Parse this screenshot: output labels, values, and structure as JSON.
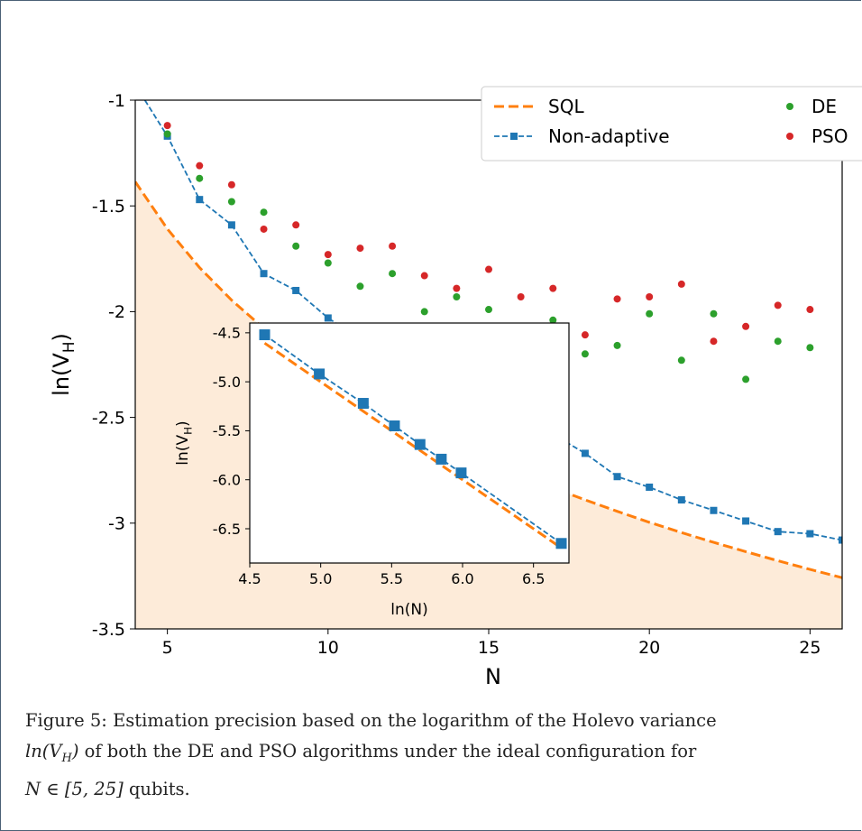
{
  "chart_data": {
    "type": "scatter",
    "xlabel": "N",
    "ylabel": "ln(V_H)",
    "xlim": [
      4,
      26
    ],
    "ylim": [
      -3.5,
      -1
    ],
    "xticks": [
      5,
      10,
      15,
      20,
      25
    ],
    "yticks": [
      -1,
      -1.5,
      -2,
      -2.5,
      -3,
      -3.5
    ],
    "xtick_labels": [
      "5",
      "10",
      "15",
      "20",
      "25"
    ],
    "ytick_labels": [
      "-1",
      "-1.5",
      "-2",
      "-2.5",
      "-3",
      "-3.5"
    ],
    "legend": {
      "placement": "top-right",
      "columns": 2
    },
    "series": [
      {
        "name": "SQL",
        "style": "dashed-line",
        "color": "#ff7f0e",
        "fill_below": "#fdebd9",
        "x": [
          4,
          5,
          6,
          7,
          8,
          9,
          10,
          11,
          12,
          13,
          14,
          15,
          16,
          17,
          18,
          19,
          20,
          21,
          22,
          23,
          24,
          25,
          26
        ],
        "y": [
          -1.386,
          -1.609,
          -1.792,
          -1.946,
          -2.079,
          -2.197,
          -2.303,
          -2.398,
          -2.485,
          -2.565,
          -2.639,
          -2.708,
          -2.773,
          -2.833,
          -2.89,
          -2.944,
          -2.996,
          -3.045,
          -3.091,
          -3.135,
          -3.178,
          -3.219,
          -3.258
        ]
      },
      {
        "name": "Non-adaptive",
        "style": "dashed-line-square",
        "color": "#1f77b4",
        "x": [
          4.3,
          5,
          6,
          7,
          8,
          9,
          10,
          11,
          12,
          13,
          14,
          15,
          16,
          17,
          18,
          19,
          20,
          21,
          22,
          23,
          24,
          25,
          26
        ],
        "y": [
          -1.0,
          -1.17,
          -1.47,
          -1.59,
          -1.82,
          -1.9,
          -2.03,
          -2.13,
          -2.2,
          -2.3,
          -2.36,
          -2.43,
          -2.5,
          -2.58,
          -2.67,
          -2.78,
          -2.83,
          -2.89,
          -2.94,
          -2.99,
          -3.04,
          -3.05,
          -3.08
        ]
      },
      {
        "name": "DE",
        "style": "points",
        "color": "#2ca02c",
        "x": [
          5,
          6,
          7,
          8,
          9,
          10,
          11,
          12,
          13,
          14,
          15,
          16,
          17,
          18,
          19,
          20,
          21,
          22,
          23,
          24,
          25
        ],
        "y": [
          -1.16,
          -1.37,
          -1.48,
          -1.53,
          -1.69,
          -1.77,
          -1.88,
          -1.82,
          -2.0,
          -1.93,
          -1.99,
          -2.08,
          -2.04,
          -2.2,
          -2.16,
          -2.01,
          -2.23,
          -2.01,
          -2.32,
          -2.14,
          -2.17
        ]
      },
      {
        "name": "PSO",
        "style": "points",
        "color": "#d62728",
        "x": [
          5,
          6,
          7,
          8,
          9,
          10,
          11,
          12,
          13,
          14,
          15,
          16,
          17,
          18,
          19,
          20,
          21,
          22,
          23,
          24,
          25
        ],
        "y": [
          -1.12,
          -1.31,
          -1.4,
          -1.61,
          -1.59,
          -1.73,
          -1.7,
          -1.69,
          -1.83,
          -1.89,
          -1.8,
          -1.93,
          -1.89,
          -2.11,
          -1.94,
          -1.93,
          -1.87,
          -2.14,
          -2.07,
          -1.97,
          -1.99
        ]
      }
    ],
    "inset": {
      "xlabel": "ln(N)",
      "ylabel": "ln(V_H)",
      "xlim": [
        4.5,
        6.75
      ],
      "ylim": [
        -6.85,
        -4.4
      ],
      "xticks": [
        4.5,
        5.0,
        5.5,
        6.0,
        6.5
      ],
      "yticks": [
        -4.5,
        -5.0,
        -5.5,
        -6.0,
        -6.5
      ],
      "xtick_labels": [
        "4.5",
        "5.0",
        "5.5",
        "6.0",
        "6.5"
      ],
      "ytick_labels": [
        "-4.5",
        "-5.0",
        "-5.5",
        "-6.0",
        "-6.5"
      ],
      "series": [
        {
          "name": "SQL",
          "style": "dashed-line",
          "color": "#ff7f0e",
          "x": [
            4.605,
            6.696
          ],
          "y": [
            -4.605,
            -6.696
          ]
        },
        {
          "name": "Non-adaptive",
          "style": "dashed-line-square",
          "color": "#1f77b4",
          "x": [
            4.605,
            4.99,
            5.3,
            5.52,
            5.7,
            5.85,
            5.99,
            6.696
          ],
          "y": [
            -4.52,
            -4.92,
            -5.22,
            -5.45,
            -5.64,
            -5.79,
            -5.93,
            -6.65
          ]
        }
      ]
    }
  },
  "caption": {
    "label": "Figure 5:",
    "line1": "Estimation precision based on the logarithm of the Holevo variance",
    "line2_math": "ln(V",
    "line2_sub": "H",
    "line2_math_end": ")",
    "line2_text": "of both the DE and PSO algorithms under the ideal configuration for",
    "line3_math": "N ∈ [5, 25]",
    "line3_text": "qubits."
  }
}
